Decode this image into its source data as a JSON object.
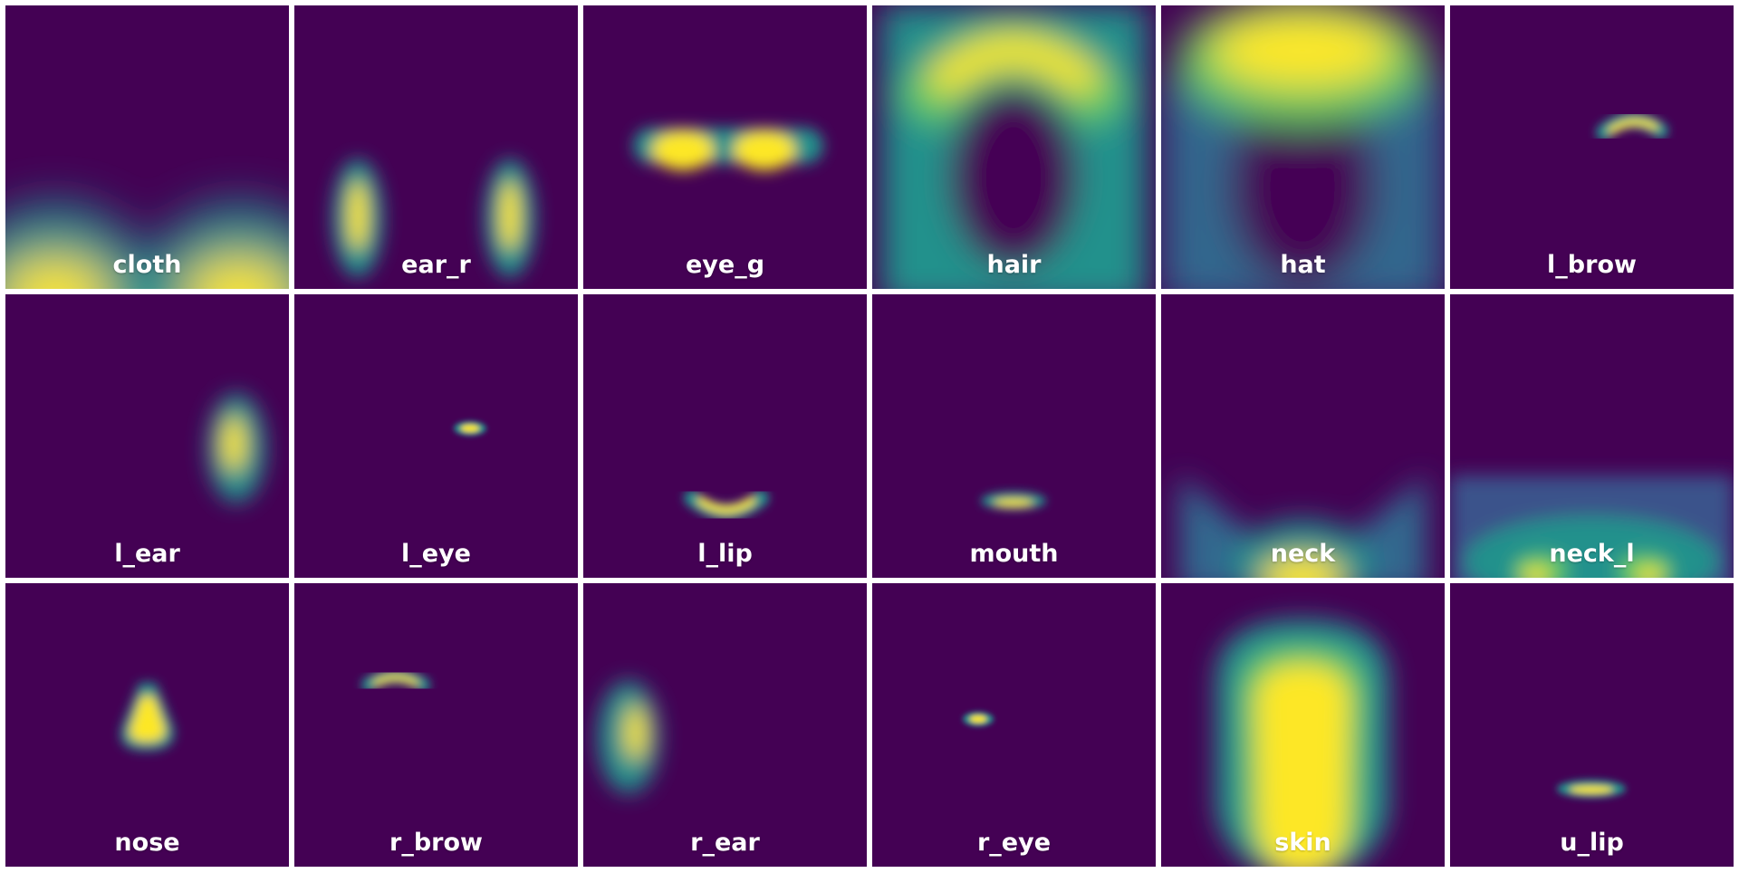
{
  "figure": {
    "tiles": [
      {
        "label": "cloth"
      },
      {
        "label": "ear_r"
      },
      {
        "label": "eye_g"
      },
      {
        "label": "hair"
      },
      {
        "label": "hat"
      },
      {
        "label": "l_brow"
      },
      {
        "label": "l_ear"
      },
      {
        "label": "l_eye"
      },
      {
        "label": "l_lip"
      },
      {
        "label": "mouth"
      },
      {
        "label": "neck"
      },
      {
        "label": "neck_l"
      },
      {
        "label": "nose"
      },
      {
        "label": "r_brow"
      },
      {
        "label": "r_ear"
      },
      {
        "label": "r_eye"
      },
      {
        "label": "skin"
      },
      {
        "label": "u_lip"
      }
    ],
    "colors": {
      "background": "#440154",
      "low": "#31688e",
      "mid": "#21918c",
      "high": "#5ec962",
      "peak": "#fde725",
      "separator": "#ffffff"
    }
  }
}
